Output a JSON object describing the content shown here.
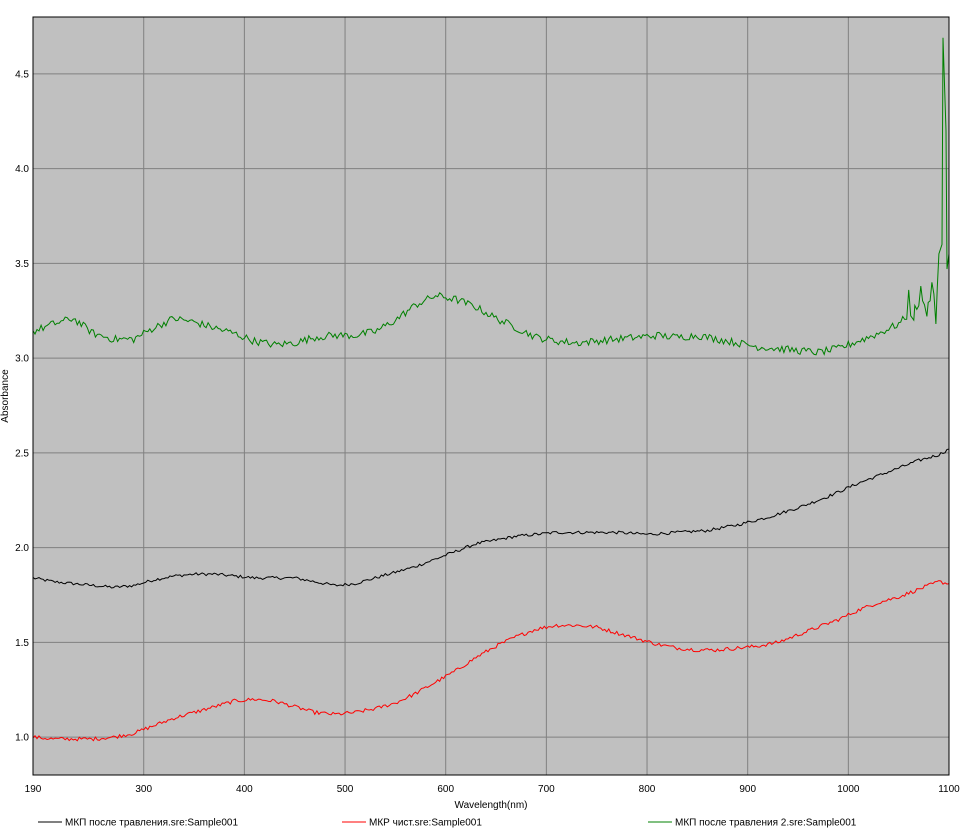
{
  "chart_data": {
    "type": "line",
    "title": "",
    "xlabel": "Wavelength(nm)",
    "ylabel": "Absorbance",
    "xlim": [
      190,
      1100
    ],
    "ylim": [
      0.8,
      4.8
    ],
    "x_ticks": [
      190,
      300,
      400,
      500,
      600,
      700,
      800,
      900,
      1000,
      1100
    ],
    "y_ticks": [
      1.0,
      1.5,
      2.0,
      2.5,
      3.0,
      3.5,
      4.0,
      4.5
    ],
    "x_tick_labels": [
      "190",
      "300",
      "400",
      "500",
      "600",
      "700",
      "800",
      "900",
      "1000",
      "1100"
    ],
    "y_tick_labels": [
      "1.0",
      "1.5",
      "2.0",
      "2.5",
      "3.0",
      "3.5",
      "4.0",
      "4.5"
    ],
    "grid": true,
    "legend_position": "bottom",
    "plot_background": "#c0c0c0",
    "grid_color": "#808080",
    "series": [
      {
        "name": "МКП после травления.sre:Sample001",
        "color": "#000000",
        "noise": 0.008,
        "points": [
          [
            190,
            1.84
          ],
          [
            210,
            1.82
          ],
          [
            230,
            1.81
          ],
          [
            250,
            1.8
          ],
          [
            270,
            1.79
          ],
          [
            290,
            1.8
          ],
          [
            310,
            1.83
          ],
          [
            330,
            1.85
          ],
          [
            350,
            1.86
          ],
          [
            370,
            1.86
          ],
          [
            390,
            1.85
          ],
          [
            410,
            1.84
          ],
          [
            430,
            1.84
          ],
          [
            450,
            1.84
          ],
          [
            470,
            1.82
          ],
          [
            490,
            1.8
          ],
          [
            510,
            1.81
          ],
          [
            530,
            1.84
          ],
          [
            550,
            1.87
          ],
          [
            570,
            1.9
          ],
          [
            590,
            1.94
          ],
          [
            610,
            1.98
          ],
          [
            630,
            2.02
          ],
          [
            650,
            2.04
          ],
          [
            670,
            2.06
          ],
          [
            690,
            2.07
          ],
          [
            710,
            2.08
          ],
          [
            740,
            2.08
          ],
          [
            770,
            2.08
          ],
          [
            800,
            2.07
          ],
          [
            830,
            2.08
          ],
          [
            860,
            2.09
          ],
          [
            890,
            2.12
          ],
          [
            920,
            2.16
          ],
          [
            950,
            2.21
          ],
          [
            980,
            2.27
          ],
          [
            1010,
            2.34
          ],
          [
            1040,
            2.4
          ],
          [
            1070,
            2.46
          ],
          [
            1090,
            2.49
          ],
          [
            1100,
            2.52
          ]
        ],
        "spikes": []
      },
      {
        "name": "МКР чист.sre:Sample001",
        "color": "#ff0000",
        "noise": 0.01,
        "points": [
          [
            190,
            1.0
          ],
          [
            210,
            0.99
          ],
          [
            230,
            0.99
          ],
          [
            250,
            0.99
          ],
          [
            270,
            1.0
          ],
          [
            290,
            1.02
          ],
          [
            310,
            1.06
          ],
          [
            330,
            1.1
          ],
          [
            350,
            1.13
          ],
          [
            370,
            1.16
          ],
          [
            390,
            1.19
          ],
          [
            410,
            1.2
          ],
          [
            430,
            1.19
          ],
          [
            450,
            1.16
          ],
          [
            470,
            1.13
          ],
          [
            490,
            1.12
          ],
          [
            510,
            1.13
          ],
          [
            530,
            1.15
          ],
          [
            550,
            1.18
          ],
          [
            570,
            1.23
          ],
          [
            590,
            1.29
          ],
          [
            610,
            1.35
          ],
          [
            630,
            1.42
          ],
          [
            650,
            1.48
          ],
          [
            670,
            1.53
          ],
          [
            690,
            1.57
          ],
          [
            710,
            1.59
          ],
          [
            730,
            1.59
          ],
          [
            750,
            1.58
          ],
          [
            770,
            1.55
          ],
          [
            790,
            1.52
          ],
          [
            810,
            1.49
          ],
          [
            830,
            1.47
          ],
          [
            850,
            1.46
          ],
          [
            870,
            1.46
          ],
          [
            890,
            1.47
          ],
          [
            910,
            1.48
          ],
          [
            930,
            1.5
          ],
          [
            950,
            1.54
          ],
          [
            970,
            1.58
          ],
          [
            990,
            1.62
          ],
          [
            1010,
            1.67
          ],
          [
            1030,
            1.71
          ],
          [
            1050,
            1.74
          ],
          [
            1070,
            1.78
          ],
          [
            1090,
            1.82
          ],
          [
            1100,
            1.81
          ]
        ],
        "spikes": []
      },
      {
        "name": "МКП после травления 2.sre:Sample001",
        "color": "#008000",
        "noise": 0.02,
        "points": [
          [
            190,
            3.14
          ],
          [
            210,
            3.18
          ],
          [
            230,
            3.21
          ],
          [
            250,
            3.13
          ],
          [
            270,
            3.1
          ],
          [
            290,
            3.1
          ],
          [
            310,
            3.16
          ],
          [
            330,
            3.21
          ],
          [
            350,
            3.19
          ],
          [
            370,
            3.16
          ],
          [
            390,
            3.13
          ],
          [
            410,
            3.09
          ],
          [
            430,
            3.07
          ],
          [
            450,
            3.08
          ],
          [
            470,
            3.11
          ],
          [
            490,
            3.12
          ],
          [
            510,
            3.12
          ],
          [
            530,
            3.14
          ],
          [
            550,
            3.2
          ],
          [
            570,
            3.28
          ],
          [
            590,
            3.33
          ],
          [
            610,
            3.31
          ],
          [
            630,
            3.27
          ],
          [
            650,
            3.21
          ],
          [
            670,
            3.16
          ],
          [
            690,
            3.11
          ],
          [
            710,
            3.09
          ],
          [
            730,
            3.08
          ],
          [
            750,
            3.09
          ],
          [
            770,
            3.1
          ],
          [
            790,
            3.11
          ],
          [
            810,
            3.12
          ],
          [
            830,
            3.11
          ],
          [
            850,
            3.12
          ],
          [
            870,
            3.1
          ],
          [
            890,
            3.08
          ],
          [
            910,
            3.06
          ],
          [
            930,
            3.05
          ],
          [
            950,
            3.04
          ],
          [
            970,
            3.03
          ],
          [
            990,
            3.05
          ],
          [
            1010,
            3.09
          ],
          [
            1030,
            3.13
          ],
          [
            1050,
            3.18
          ],
          [
            1070,
            3.28
          ],
          [
            1085,
            3.33
          ],
          [
            1090,
            3.4
          ],
          [
            1100,
            3.55
          ]
        ],
        "spikes": [
          [
            1060,
            3.36
          ],
          [
            1065,
            3.2
          ],
          [
            1072,
            3.38
          ],
          [
            1078,
            3.22
          ],
          [
            1083,
            3.4
          ],
          [
            1087,
            3.18
          ],
          [
            1090,
            3.55
          ],
          [
            1092,
            4.3
          ],
          [
            1093,
            3.6
          ],
          [
            1094,
            4.69
          ],
          [
            1096,
            3.8
          ],
          [
            1097,
            4.2
          ],
          [
            1098,
            3.47
          ],
          [
            1100,
            3.55
          ]
        ]
      }
    ]
  }
}
